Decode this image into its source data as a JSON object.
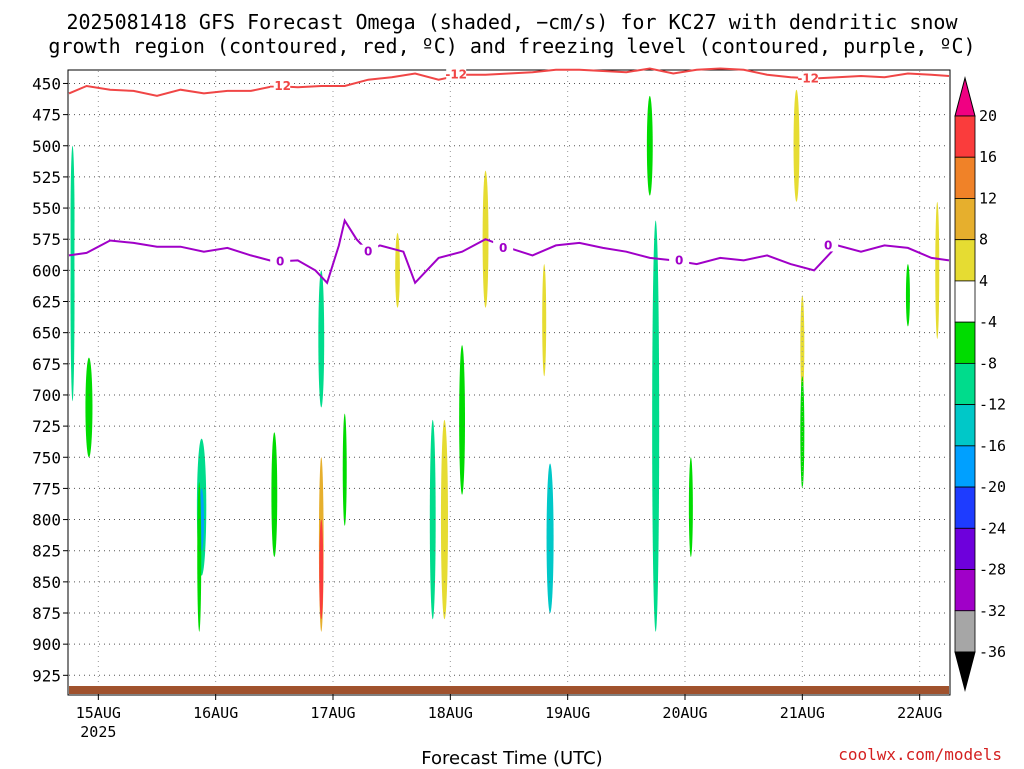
{
  "chart_data": {
    "type": "heatmap",
    "title": "2025081418 GFS Forecast Omega (shaded, −cm/s) for KC27 with dendritic snow",
    "subtitle": "growth region (contoured, red, ºC) and freezing level (contoured, purple, ºC)",
    "xlabel": "Forecast Time (UTC)",
    "x_ticks": [
      "15AUG",
      "16AUG",
      "17AUG",
      "18AUG",
      "19AUG",
      "20AUG",
      "21AUG",
      "22AUG"
    ],
    "x_year": "2025",
    "y_ticks": [
      450,
      475,
      500,
      525,
      550,
      575,
      600,
      625,
      650,
      675,
      700,
      725,
      750,
      775,
      800,
      825,
      850,
      875,
      900,
      925
    ],
    "ylim": [
      440,
      940
    ],
    "xlim_days": [
      14.75,
      22.25
    ],
    "colorbar": {
      "levels": [
        -36,
        -32,
        -28,
        -24,
        -20,
        -16,
        -12,
        -8,
        -4,
        4,
        8,
        12,
        16,
        20
      ],
      "colors": [
        "#000000",
        "#a6a6a6",
        "#a000c8",
        "#6e00dc",
        "#1e3cff",
        "#00a0ff",
        "#00c8c8",
        "#00dc8c",
        "#00dc00",
        "#ffffff",
        "#e6dc32",
        "#e6af2d",
        "#f08228",
        "#fa3c3c",
        "#f00082"
      ]
    },
    "contours": [
      {
        "label": "-12",
        "color": "#f04646",
        "points": [
          [
            14.75,
            458
          ],
          [
            14.9,
            452
          ],
          [
            15.1,
            455
          ],
          [
            15.3,
            456
          ],
          [
            15.5,
            460
          ],
          [
            15.7,
            455
          ],
          [
            15.9,
            458
          ],
          [
            16.1,
            456
          ],
          [
            16.3,
            456
          ],
          [
            16.5,
            452
          ],
          [
            16.7,
            453
          ],
          [
            16.9,
            452
          ],
          [
            17.1,
            452
          ],
          [
            17.3,
            447
          ],
          [
            17.5,
            445
          ],
          [
            17.7,
            442
          ],
          [
            17.9,
            447
          ],
          [
            18.1,
            443
          ],
          [
            18.3,
            443
          ],
          [
            18.5,
            442
          ],
          [
            18.7,
            441
          ],
          [
            18.9,
            439
          ],
          [
            19.1,
            439
          ],
          [
            19.3,
            440
          ],
          [
            19.5,
            441
          ],
          [
            19.7,
            438
          ],
          [
            19.9,
            442
          ],
          [
            20.1,
            439
          ],
          [
            20.3,
            438
          ],
          [
            20.5,
            439
          ],
          [
            20.7,
            443
          ],
          [
            20.9,
            445
          ],
          [
            21.1,
            446
          ],
          [
            21.3,
            445
          ],
          [
            21.5,
            444
          ],
          [
            21.7,
            445
          ],
          [
            21.9,
            442
          ],
          [
            22.1,
            443
          ],
          [
            22.25,
            444
          ]
        ]
      },
      {
        "label": "0",
        "color": "#a000c8",
        "points": [
          [
            14.75,
            588
          ],
          [
            14.9,
            586
          ],
          [
            15.1,
            576
          ],
          [
            15.3,
            578
          ],
          [
            15.5,
            581
          ],
          [
            15.7,
            581
          ],
          [
            15.9,
            585
          ],
          [
            16.1,
            582
          ],
          [
            16.3,
            588
          ],
          [
            16.5,
            593
          ],
          [
            16.7,
            592
          ],
          [
            16.85,
            600
          ],
          [
            16.95,
            610
          ],
          [
            17.05,
            580
          ],
          [
            17.1,
            560
          ],
          [
            17.2,
            575
          ],
          [
            17.3,
            585
          ],
          [
            17.4,
            580
          ],
          [
            17.6,
            585
          ],
          [
            17.7,
            610
          ],
          [
            17.9,
            590
          ],
          [
            18.1,
            585
          ],
          [
            18.3,
            575
          ],
          [
            18.5,
            582
          ],
          [
            18.7,
            588
          ],
          [
            18.9,
            580
          ],
          [
            19.1,
            578
          ],
          [
            19.3,
            582
          ],
          [
            19.5,
            585
          ],
          [
            19.7,
            590
          ],
          [
            19.9,
            592
          ],
          [
            20.1,
            595
          ],
          [
            20.3,
            590
          ],
          [
            20.5,
            592
          ],
          [
            20.7,
            588
          ],
          [
            20.9,
            595
          ],
          [
            21.1,
            600
          ],
          [
            21.3,
            580
          ],
          [
            21.5,
            585
          ],
          [
            21.7,
            580
          ],
          [
            21.9,
            582
          ],
          [
            22.1,
            590
          ],
          [
            22.25,
            592
          ]
        ]
      }
    ],
    "cells": [
      {
        "t": 14.78,
        "p": 620,
        "dt": 0.03,
        "dp": 170,
        "v": -8
      },
      {
        "t": 14.78,
        "p": 560,
        "dt": 0.03,
        "dp": 120,
        "v": -10
      },
      {
        "t": 14.92,
        "p": 710,
        "dt": 0.06,
        "dp": 80,
        "v": -6
      },
      {
        "t": 15.88,
        "p": 790,
        "dt": 0.08,
        "dp": 110,
        "v": -10
      },
      {
        "t": 15.88,
        "p": 800,
        "dt": 0.04,
        "dp": 50,
        "v": -18
      },
      {
        "t": 15.86,
        "p": 830,
        "dt": 0.03,
        "dp": 120,
        "v": -7
      },
      {
        "t": 16.5,
        "p": 780,
        "dt": 0.05,
        "dp": 100,
        "v": -6
      },
      {
        "t": 16.9,
        "p": 655,
        "dt": 0.05,
        "dp": 110,
        "v": -10
      },
      {
        "t": 16.9,
        "p": 820,
        "dt": 0.04,
        "dp": 140,
        "v": 9
      },
      {
        "t": 16.9,
        "p": 840,
        "dt": 0.02,
        "dp": 80,
        "v": 18
      },
      {
        "t": 17.1,
        "p": 760,
        "dt": 0.03,
        "dp": 90,
        "v": -6
      },
      {
        "t": 17.55,
        "p": 600,
        "dt": 0.04,
        "dp": 60,
        "v": 5
      },
      {
        "t": 17.85,
        "p": 800,
        "dt": 0.05,
        "dp": 160,
        "v": -8
      },
      {
        "t": 17.95,
        "p": 800,
        "dt": 0.06,
        "dp": 160,
        "v": 6
      },
      {
        "t": 18.1,
        "p": 720,
        "dt": 0.05,
        "dp": 120,
        "v": -6
      },
      {
        "t": 18.3,
        "p": 575,
        "dt": 0.05,
        "dp": 110,
        "v": 6
      },
      {
        "t": 18.85,
        "p": 815,
        "dt": 0.06,
        "dp": 120,
        "v": -12
      },
      {
        "t": 18.8,
        "p": 640,
        "dt": 0.03,
        "dp": 90,
        "v": 5
      },
      {
        "t": 19.75,
        "p": 725,
        "dt": 0.06,
        "dp": 330,
        "v": -9
      },
      {
        "t": 19.7,
        "p": 500,
        "dt": 0.05,
        "dp": 80,
        "v": -6
      },
      {
        "t": 20.05,
        "p": 790,
        "dt": 0.03,
        "dp": 80,
        "v": -6
      },
      {
        "t": 20.95,
        "p": 500,
        "dt": 0.05,
        "dp": 90,
        "v": 6
      },
      {
        "t": 21.0,
        "p": 660,
        "dt": 0.03,
        "dp": 80,
        "v": 5
      },
      {
        "t": 21.0,
        "p": 730,
        "dt": 0.03,
        "dp": 90,
        "v": -6
      },
      {
        "t": 21.9,
        "p": 620,
        "dt": 0.03,
        "dp": 50,
        "v": -6
      },
      {
        "t": 22.15,
        "p": 600,
        "dt": 0.03,
        "dp": 110,
        "v": 5
      }
    ],
    "grid": true
  },
  "credit": "coolwx.com/models"
}
